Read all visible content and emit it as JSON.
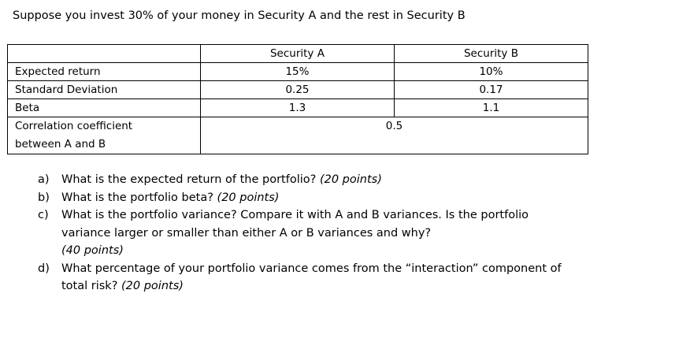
{
  "intro": "Suppose you invest 30% of your money in Security A and the rest in Security B",
  "table": {
    "headers": [
      "",
      "Security A",
      "Security B"
    ],
    "rows": [
      {
        "label": "Expected return",
        "a": "15%",
        "b": "10%"
      },
      {
        "label": "Standard Deviation",
        "a": "0.25",
        "b": "0.17"
      },
      {
        "label": "Beta",
        "a": "1.3",
        "b": "1.1"
      }
    ],
    "correlation": {
      "label_line1": "Correlation coefficient",
      "label_line2": "between A and B",
      "value": "0.5"
    }
  },
  "questions": [
    {
      "letter": "a)",
      "text": "What is the expected return of the portfolio?",
      "points": "(20 points)"
    },
    {
      "letter": "b)",
      "text": "What is the portfolio beta?",
      "points": "(20 points)"
    },
    {
      "letter": "c)",
      "line1": "What is the portfolio variance? Compare it with A and B variances. Is the portfolio",
      "line2": "variance larger or smaller than either A or B variances and why?",
      "points": "(40 points)"
    },
    {
      "letter": "d)",
      "line1": "What percentage of your portfolio variance comes from the “interaction” component of",
      "line2": "total risk?",
      "points": "(20 points)"
    }
  ]
}
